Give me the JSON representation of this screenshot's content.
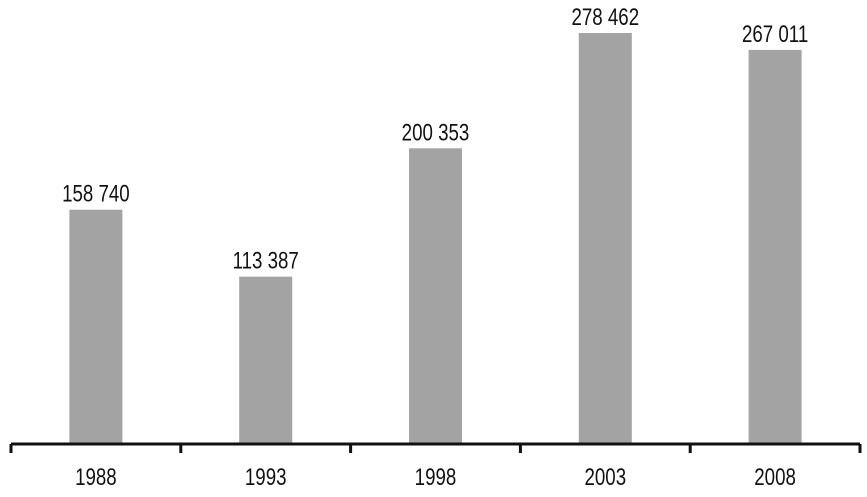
{
  "chart_data": {
    "type": "bar",
    "categories": [
      "1988",
      "1993",
      "1998",
      "2003",
      "2008"
    ],
    "values": [
      158740,
      113387,
      200353,
      278462,
      267011
    ],
    "data_labels": [
      "158 740",
      "113 387",
      "200 353",
      "278 462",
      "267 011"
    ],
    "title": "",
    "xlabel": "",
    "ylabel": "",
    "ylim": [
      0,
      278462
    ],
    "grid": false,
    "y_axis_visible": false,
    "bar_color": "#a3a3a3",
    "axis_color": "#111111"
  }
}
